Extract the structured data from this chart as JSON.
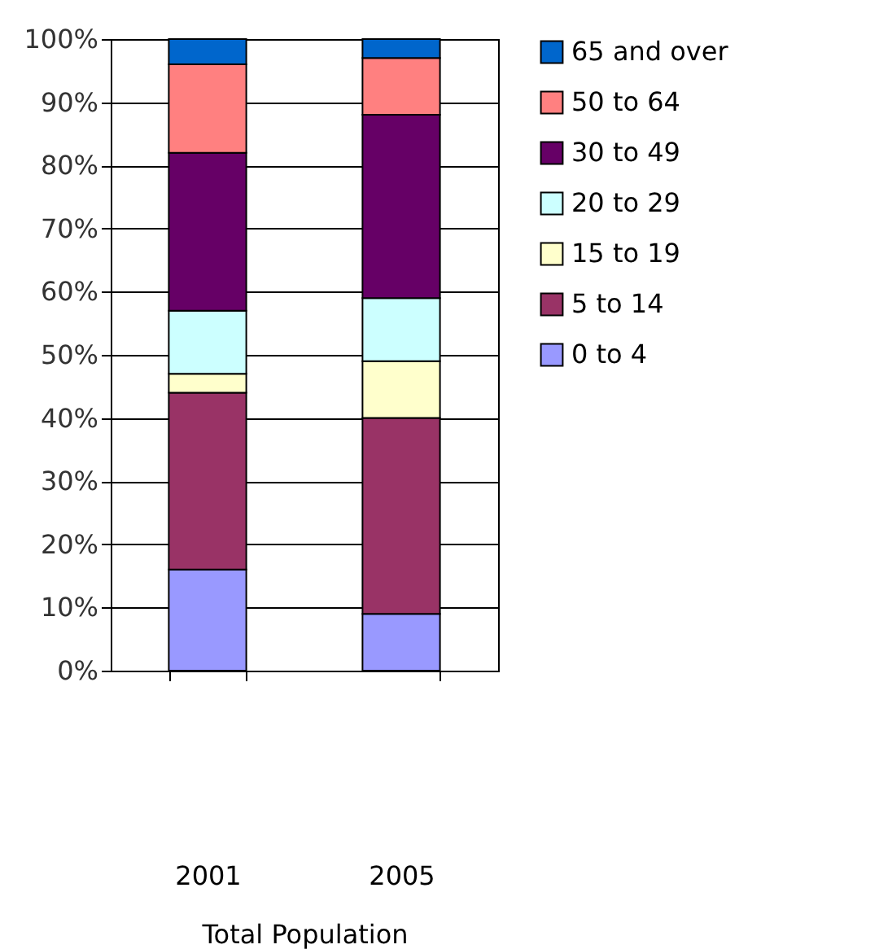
{
  "chart_data": {
    "type": "bar",
    "stacked": true,
    "xlabel": "Total Population",
    "categories": [
      "2001",
      "2005"
    ],
    "series": [
      {
        "name": "0 to 4",
        "color": "#9999ff",
        "values": [
          16,
          9
        ]
      },
      {
        "name": "5 to 14",
        "color": "#993366",
        "values": [
          28,
          31
        ]
      },
      {
        "name": "15 to 19",
        "color": "#ffffcc",
        "values": [
          3,
          9
        ]
      },
      {
        "name": "20 to 29",
        "color": "#ccffff",
        "values": [
          10,
          10
        ]
      },
      {
        "name": "30 to 49",
        "color": "#660066",
        "values": [
          25,
          29
        ]
      },
      {
        "name": "50 to 64",
        "color": "#ff8080",
        "values": [
          14,
          9
        ]
      },
      {
        "name": "65 and over",
        "color": "#0066cc",
        "values": [
          4,
          3
        ]
      }
    ],
    "ylim": [
      0,
      100
    ],
    "yticks": [
      {
        "value": 0,
        "label": "0%"
      },
      {
        "value": 10,
        "label": "10%"
      },
      {
        "value": 20,
        "label": "20%"
      },
      {
        "value": 30,
        "label": "30%"
      },
      {
        "value": 40,
        "label": "40%"
      },
      {
        "value": 50,
        "label": "50%"
      },
      {
        "value": 60,
        "label": "60%"
      },
      {
        "value": 70,
        "label": "70%"
      },
      {
        "value": 80,
        "label": "80%"
      },
      {
        "value": 90,
        "label": "90%"
      },
      {
        "value": 100,
        "label": "100%"
      }
    ],
    "grid": "y",
    "legend": "right"
  }
}
